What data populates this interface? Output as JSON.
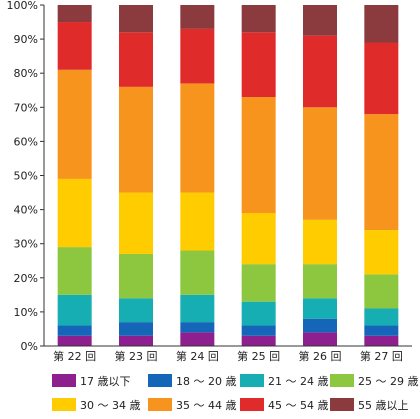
{
  "chart_data": {
    "type": "bar",
    "stacked": true,
    "title": "",
    "xlabel": "",
    "ylabel": "",
    "ylim": [
      0,
      100
    ],
    "y_ticks": [
      "0%",
      "10%",
      "20%",
      "30%",
      "40%",
      "50%",
      "60%",
      "70%",
      "80%",
      "90%",
      "100%"
    ],
    "grid": false,
    "legend_position": "bottom",
    "categories": [
      "第 22 回",
      "第 23 回",
      "第 24 回",
      "第 25 回",
      "第 26 回",
      "第 27 回"
    ],
    "series": [
      {
        "name": "17 歳以下",
        "color": "#8e1f8e",
        "values": [
          3,
          3,
          4,
          3,
          4,
          3
        ]
      },
      {
        "name": "18 ～ 20 歳",
        "color": "#1565b8",
        "values": [
          3,
          4,
          3,
          3,
          4,
          3
        ]
      },
      {
        "name": "21 ～ 24 歳",
        "color": "#16adb3",
        "values": [
          9,
          7,
          8,
          7,
          6,
          5
        ]
      },
      {
        "name": "25 ～ 29 歳",
        "color": "#8dc63f",
        "values": [
          14,
          13,
          13,
          11,
          10,
          10
        ]
      },
      {
        "name": "30 ～ 34 歳",
        "color": "#ffcc00",
        "values": [
          20,
          18,
          17,
          15,
          13,
          13
        ]
      },
      {
        "name": "35 ～ 44 歳",
        "color": "#f7941d",
        "values": [
          32,
          31,
          32,
          34,
          33,
          34
        ]
      },
      {
        "name": "45 ～ 54 歳",
        "color": "#e02b2b",
        "values": [
          14,
          16,
          16,
          19,
          21,
          21
        ]
      },
      {
        "name": "55 歳以上",
        "color": "#8b3a3e",
        "values": [
          5,
          8,
          7,
          8,
          9,
          11
        ]
      }
    ]
  }
}
